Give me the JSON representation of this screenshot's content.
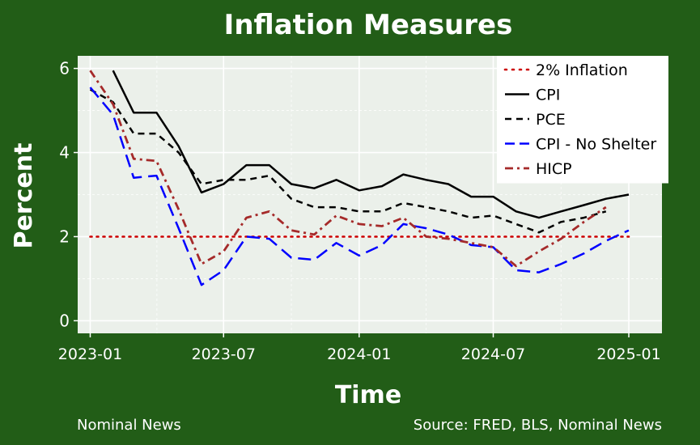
{
  "chart_data": {
    "type": "line",
    "title": "Inflation Measures",
    "xlabel": "Time",
    "ylabel": "Percent",
    "caption_left": "Nominal News",
    "caption_right": "Source: FRED, BLS, Nominal News",
    "xlim": [
      "2022-12-15",
      "2025-02-15"
    ],
    "ylim": [
      -0.3,
      6.3
    ],
    "x_ticks": [
      "2023-01-01",
      "2023-07-01",
      "2024-01-01",
      "2024-07-01",
      "2025-01-01"
    ],
    "x_tick_labels": [
      "2023-01",
      "2023-07",
      "2024-01",
      "2024-07",
      "2025-01"
    ],
    "y_ticks": [
      0,
      2,
      4,
      6
    ],
    "y_tick_labels": [
      "0",
      "2",
      "4",
      "6"
    ],
    "grid": true,
    "legend_position": "top-right",
    "colors": {
      "background": "#225d17",
      "panel": "#ebf0ea",
      "grid": "#ffffff",
      "cpi": "#000000",
      "pce": "#000000",
      "cpi_no_shelter": "#0000ff",
      "hicp": "#a52a2a",
      "target": "#cc0000"
    },
    "series": [
      {
        "name": "2% Inflation",
        "key": "target",
        "style": "dotted",
        "x": [
          "2023-01-01",
          "2025-01-01"
        ],
        "values": [
          2.0,
          2.0
        ]
      },
      {
        "name": "CPI",
        "key": "cpi",
        "style": "solid",
        "x": [
          "2023-02-01",
          "2023-03-01",
          "2023-04-01",
          "2023-05-01",
          "2023-06-01",
          "2023-07-01",
          "2023-08-01",
          "2023-09-01",
          "2023-10-01",
          "2023-11-01",
          "2023-12-01",
          "2024-01-01",
          "2024-02-01",
          "2024-03-01",
          "2024-04-01",
          "2024-05-01",
          "2024-06-01",
          "2024-07-01",
          "2024-08-01",
          "2024-09-01",
          "2024-10-01",
          "2024-11-01",
          "2024-12-01",
          "2025-01-01"
        ],
        "values": [
          5.95,
          4.95,
          4.95,
          4.15,
          3.05,
          3.25,
          3.7,
          3.7,
          3.25,
          3.15,
          3.35,
          3.1,
          3.2,
          3.48,
          3.35,
          3.25,
          2.95,
          2.95,
          2.6,
          2.45,
          2.6,
          2.75,
          2.9,
          3.0
        ]
      },
      {
        "name": "PCE",
        "key": "pce",
        "style": "dashed",
        "x": [
          "2023-01-01",
          "2023-02-01",
          "2023-03-01",
          "2023-04-01",
          "2023-05-01",
          "2023-06-01",
          "2023-07-01",
          "2023-08-01",
          "2023-09-01",
          "2023-10-01",
          "2023-11-01",
          "2023-12-01",
          "2024-01-01",
          "2024-02-01",
          "2024-03-01",
          "2024-04-01",
          "2024-05-01",
          "2024-06-01",
          "2024-07-01",
          "2024-08-01",
          "2024-09-01",
          "2024-10-01",
          "2024-11-01",
          "2024-12-01"
        ],
        "values": [
          5.5,
          5.2,
          4.45,
          4.45,
          4.0,
          3.25,
          3.35,
          3.35,
          3.45,
          2.9,
          2.7,
          2.7,
          2.6,
          2.6,
          2.8,
          2.7,
          2.6,
          2.45,
          2.5,
          2.3,
          2.1,
          2.35,
          2.45,
          2.6
        ]
      },
      {
        "name": "CPI - No Shelter",
        "key": "cpi_no_shelter",
        "style": "longdash",
        "x": [
          "2023-01-01",
          "2023-02-01",
          "2023-03-01",
          "2023-04-01",
          "2023-05-01",
          "2023-06-01",
          "2023-07-01",
          "2023-08-01",
          "2023-09-01",
          "2023-10-01",
          "2023-11-01",
          "2023-12-01",
          "2024-01-01",
          "2024-02-01",
          "2024-03-01",
          "2024-04-01",
          "2024-05-01",
          "2024-06-01",
          "2024-07-01",
          "2024-08-01",
          "2024-09-01",
          "2024-10-01",
          "2024-11-01",
          "2024-12-01",
          "2025-01-01"
        ],
        "values": [
          5.55,
          4.9,
          3.4,
          3.45,
          2.2,
          0.85,
          1.2,
          2.0,
          1.95,
          1.5,
          1.45,
          1.85,
          1.55,
          1.8,
          2.3,
          2.2,
          2.05,
          1.8,
          1.75,
          1.2,
          1.15,
          1.35,
          1.6,
          1.9,
          2.15
        ]
      },
      {
        "name": "HICP",
        "key": "hicp",
        "style": "dashdot",
        "x": [
          "2023-01-01",
          "2023-02-01",
          "2023-03-01",
          "2023-04-01",
          "2023-05-01",
          "2023-06-01",
          "2023-07-01",
          "2023-08-01",
          "2023-09-01",
          "2023-10-01",
          "2023-11-01",
          "2023-12-01",
          "2024-01-01",
          "2024-02-01",
          "2024-03-01",
          "2024-04-01",
          "2024-05-01",
          "2024-06-01",
          "2024-07-01",
          "2024-08-01",
          "2024-09-01",
          "2024-10-01",
          "2024-11-01",
          "2024-12-01"
        ],
        "values": [
          5.95,
          5.15,
          3.85,
          3.8,
          2.65,
          1.35,
          1.65,
          2.45,
          2.6,
          2.15,
          2.05,
          2.5,
          2.3,
          2.25,
          2.45,
          2.0,
          1.95,
          1.85,
          1.75,
          1.3,
          1.65,
          1.95,
          2.35,
          2.7
        ]
      }
    ]
  }
}
